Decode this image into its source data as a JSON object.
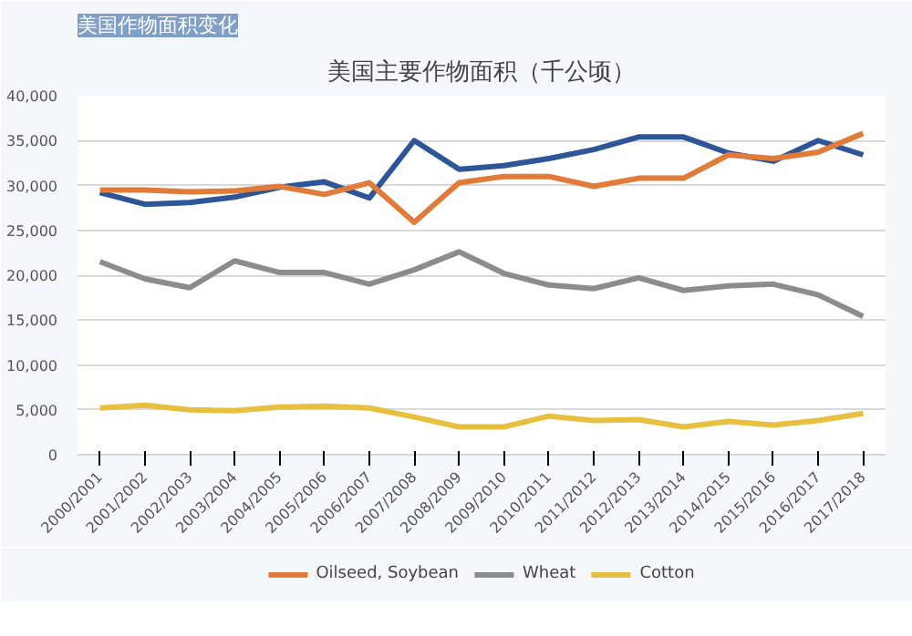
{
  "chart_data": {
    "type": "line",
    "title": "美国主要作物面积（千公顷）",
    "subtitle": "美国作物面积变化",
    "categories": [
      "2000/2001",
      "2001/2002",
      "2002/2003",
      "2003/2004",
      "2004/2005",
      "2005/2006",
      "2006/2007",
      "2007/2008",
      "2008/2009",
      "2009/2010",
      "2010/2011",
      "2011/2012",
      "2012/2013",
      "2013/2014",
      "2014/2015",
      "2015/2016",
      "2016/2017",
      "2017/2018"
    ],
    "series": [
      {
        "color": "#2e5597",
        "values": [
          29200,
          27900,
          28100,
          28700,
          29800,
          30400,
          28600,
          35000,
          31800,
          32200,
          33000,
          34000,
          35400,
          35400,
          33600,
          32700,
          35000,
          33400
        ]
      },
      {
        "name": "Oilseed, Soybean",
        "color": "#e07b39",
        "values": [
          29500,
          29500,
          29300,
          29400,
          29900,
          29000,
          30300,
          25900,
          30300,
          31000,
          31000,
          29900,
          30800,
          30800,
          33400,
          33000,
          33700,
          35800
        ]
      },
      {
        "name": "Wheat",
        "color": "#8c8c8c",
        "values": [
          21500,
          19600,
          18600,
          21600,
          20300,
          20300,
          19000,
          20600,
          22600,
          20200,
          18900,
          18500,
          19700,
          18300,
          18800,
          19000,
          17800,
          15400
        ]
      },
      {
        "name": "Cotton",
        "color": "#e8c040",
        "values": [
          5200,
          5500,
          5000,
          4900,
          5300,
          5400,
          5200,
          4200,
          3100,
          3100,
          4300,
          3800,
          3900,
          3100,
          3700,
          3300,
          3800,
          4600
        ]
      }
    ],
    "ylim": [
      0,
      40000
    ],
    "yticks": [
      {
        "value": 0,
        "label": "0"
      },
      {
        "value": 5000,
        "label": "5,000"
      },
      {
        "value": 10000,
        "label": "10,000"
      },
      {
        "value": 15000,
        "label": "15,000"
      },
      {
        "value": 20000,
        "label": "20,000"
      },
      {
        "value": 25000,
        "label": "25,000"
      },
      {
        "value": 30000,
        "label": "30,000"
      },
      {
        "value": 35000,
        "label": "35,000"
      },
      {
        "value": 40000,
        "label": "40,000"
      }
    ],
    "grid": "y",
    "legend": "bottom",
    "marker": "none",
    "line_style": "solid"
  }
}
